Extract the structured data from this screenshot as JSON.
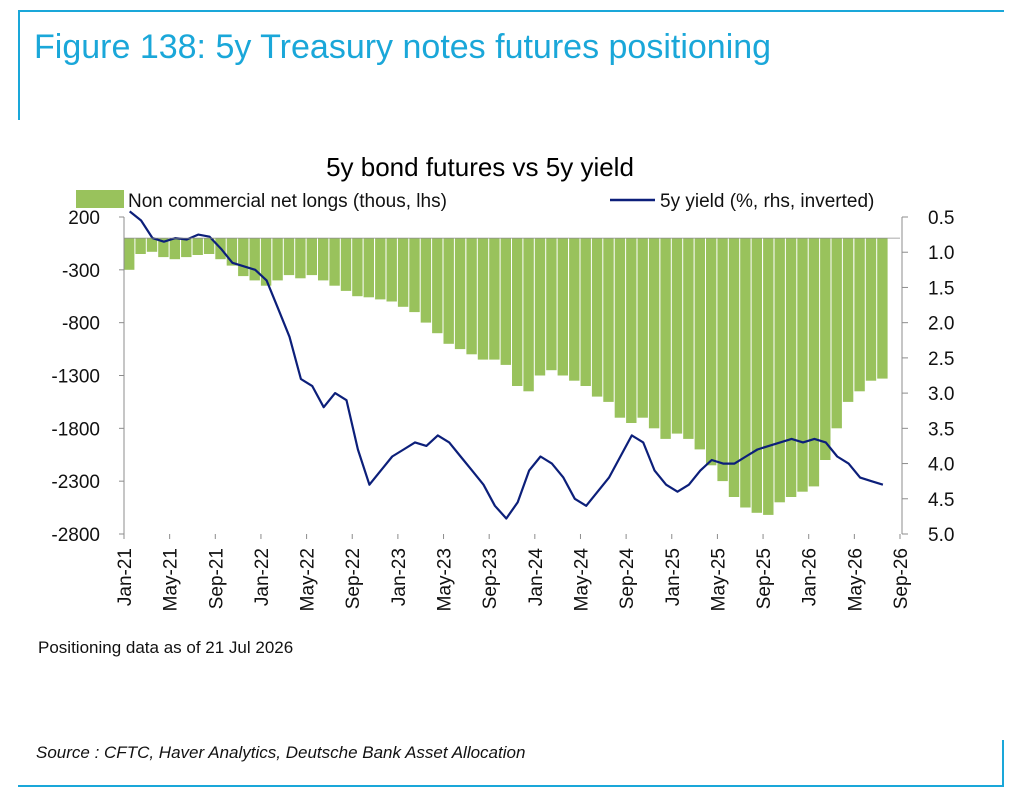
{
  "figure": {
    "title": "Figure 138: 5y Treasury notes futures positioning",
    "note": "Positioning data as of 21 Jul 2026",
    "source": "Source : CFTC, Haver Analytics, Deutsche Bank Asset Allocation"
  },
  "colors": {
    "accent": "#1aa7d9",
    "bars": "#99c25c",
    "line": "#0c1f7a",
    "axis": "#8c8c8c"
  },
  "chart_data": {
    "type": "bar+line",
    "title": "5y bond futures vs 5y yield",
    "legend_placement": "top",
    "grid": false,
    "x_ticks": [
      "Jan-21",
      "May-21",
      "Sep-21",
      "Jan-22",
      "May-22",
      "Sep-22",
      "Jan-23",
      "May-23",
      "Sep-23",
      "Jan-24",
      "May-24",
      "Sep-24",
      "Jan-25",
      "May-25",
      "Sep-25",
      "Jan-26",
      "May-26",
      "Sep-26"
    ],
    "y_left": {
      "ticks": [
        "200",
        "-300",
        "-800",
        "-1300",
        "-1800",
        "-2300",
        "-2800"
      ],
      "range": [
        -2800,
        200
      ]
    },
    "y_right": {
      "ticks": [
        "0.5",
        "1.0",
        "1.5",
        "2.0",
        "2.5",
        "3.0",
        "3.5",
        "4.0",
        "4.5",
        "5.0"
      ],
      "range": [
        0.5,
        5.0
      ],
      "inverted": true
    },
    "series": [
      {
        "name": "Non commercial net longs (thous, lhs)",
        "type": "bar",
        "axis": "left",
        "points": [
          [
            "2021-01",
            -300
          ],
          [
            "2021-02",
            -150
          ],
          [
            "2021-03",
            -130
          ],
          [
            "2021-04",
            -180
          ],
          [
            "2021-05",
            -200
          ],
          [
            "2021-06",
            -180
          ],
          [
            "2021-07",
            -160
          ],
          [
            "2021-08",
            -150
          ],
          [
            "2021-09",
            -200
          ],
          [
            "2021-10",
            -260
          ],
          [
            "2021-11",
            -360
          ],
          [
            "2021-12",
            -400
          ],
          [
            "2022-01",
            -450
          ],
          [
            "2022-02",
            -400
          ],
          [
            "2022-03",
            -350
          ],
          [
            "2022-04",
            -380
          ],
          [
            "2022-05",
            -350
          ],
          [
            "2022-06",
            -400
          ],
          [
            "2022-07",
            -450
          ],
          [
            "2022-08",
            -500
          ],
          [
            "2022-09",
            -550
          ],
          [
            "2022-10",
            -560
          ],
          [
            "2022-11",
            -580
          ],
          [
            "2022-12",
            -600
          ],
          [
            "2023-01",
            -650
          ],
          [
            "2023-02",
            -700
          ],
          [
            "2023-03",
            -800
          ],
          [
            "2023-04",
            -900
          ],
          [
            "2023-05",
            -1000
          ],
          [
            "2023-06",
            -1050
          ],
          [
            "2023-07",
            -1100
          ],
          [
            "2023-08",
            -1150
          ],
          [
            "2023-09",
            -1150
          ],
          [
            "2023-10",
            -1200
          ],
          [
            "2023-11",
            -1400
          ],
          [
            "2023-12",
            -1450
          ],
          [
            "2024-01",
            -1300
          ],
          [
            "2024-02",
            -1250
          ],
          [
            "2024-03",
            -1300
          ],
          [
            "2024-04",
            -1350
          ],
          [
            "2024-05",
            -1400
          ],
          [
            "2024-06",
            -1500
          ],
          [
            "2024-07",
            -1550
          ],
          [
            "2024-08",
            -1700
          ],
          [
            "2024-09",
            -1750
          ],
          [
            "2024-10",
            -1700
          ],
          [
            "2024-11",
            -1800
          ],
          [
            "2024-12",
            -1900
          ],
          [
            "2025-01",
            -1850
          ],
          [
            "2025-02",
            -1900
          ],
          [
            "2025-03",
            -2000
          ],
          [
            "2025-04",
            -2150
          ],
          [
            "2025-05",
            -2300
          ],
          [
            "2025-06",
            -2450
          ],
          [
            "2025-07",
            -2550
          ],
          [
            "2025-08",
            -2600
          ],
          [
            "2025-09",
            -2620
          ],
          [
            "2025-10",
            -2500
          ],
          [
            "2025-11",
            -2450
          ],
          [
            "2025-12",
            -2400
          ],
          [
            "2026-01",
            -2350
          ],
          [
            "2026-02",
            -2100
          ],
          [
            "2026-03",
            -1800
          ],
          [
            "2026-04",
            -1550
          ],
          [
            "2026-05",
            -1450
          ],
          [
            "2026-06",
            -1350
          ],
          [
            "2026-07",
            -1330
          ]
        ]
      },
      {
        "name": "5y yield (%, rhs, inverted)",
        "type": "line",
        "axis": "right",
        "points": [
          [
            "2021-01",
            0.42
          ],
          [
            "2021-02",
            0.55
          ],
          [
            "2021-03",
            0.8
          ],
          [
            "2021-04",
            0.85
          ],
          [
            "2021-05",
            0.8
          ],
          [
            "2021-06",
            0.82
          ],
          [
            "2021-07",
            0.75
          ],
          [
            "2021-08",
            0.78
          ],
          [
            "2021-09",
            0.95
          ],
          [
            "2021-10",
            1.15
          ],
          [
            "2021-11",
            1.2
          ],
          [
            "2021-12",
            1.25
          ],
          [
            "2022-01",
            1.4
          ],
          [
            "2022-02",
            1.8
          ],
          [
            "2022-03",
            2.2
          ],
          [
            "2022-04",
            2.8
          ],
          [
            "2022-05",
            2.9
          ],
          [
            "2022-06",
            3.2
          ],
          [
            "2022-07",
            3.0
          ],
          [
            "2022-08",
            3.1
          ],
          [
            "2022-09",
            3.8
          ],
          [
            "2022-10",
            4.3
          ],
          [
            "2022-11",
            4.1
          ],
          [
            "2022-12",
            3.9
          ],
          [
            "2023-01",
            3.8
          ],
          [
            "2023-02",
            3.7
          ],
          [
            "2023-03",
            3.75
          ],
          [
            "2023-04",
            3.6
          ],
          [
            "2023-05",
            3.7
          ],
          [
            "2023-06",
            3.9
          ],
          [
            "2023-07",
            4.1
          ],
          [
            "2023-08",
            4.3
          ],
          [
            "2023-09",
            4.6
          ],
          [
            "2023-10",
            4.78
          ],
          [
            "2023-11",
            4.55
          ],
          [
            "2023-12",
            4.1
          ],
          [
            "2024-01",
            3.9
          ],
          [
            "2024-02",
            4.0
          ],
          [
            "2024-03",
            4.2
          ],
          [
            "2024-04",
            4.5
          ],
          [
            "2024-05",
            4.6
          ],
          [
            "2024-06",
            4.4
          ],
          [
            "2024-07",
            4.2
          ],
          [
            "2024-08",
            3.9
          ],
          [
            "2024-09",
            3.6
          ],
          [
            "2024-10",
            3.7
          ],
          [
            "2024-11",
            4.1
          ],
          [
            "2024-12",
            4.3
          ],
          [
            "2025-01",
            4.4
          ],
          [
            "2025-02",
            4.3
          ],
          [
            "2025-03",
            4.1
          ],
          [
            "2025-04",
            3.95
          ],
          [
            "2025-05",
            4.0
          ],
          [
            "2025-06",
            4.0
          ],
          [
            "2025-07",
            3.9
          ],
          [
            "2025-08",
            3.8
          ],
          [
            "2025-09",
            3.75
          ],
          [
            "2025-10",
            3.7
          ],
          [
            "2025-11",
            3.65
          ],
          [
            "2025-12",
            3.7
          ],
          [
            "2026-01",
            3.65
          ],
          [
            "2026-02",
            3.7
          ],
          [
            "2026-03",
            3.9
          ],
          [
            "2026-04",
            4.0
          ],
          [
            "2026-05",
            4.2
          ],
          [
            "2026-06",
            4.25
          ],
          [
            "2026-07",
            4.3
          ]
        ]
      }
    ]
  }
}
